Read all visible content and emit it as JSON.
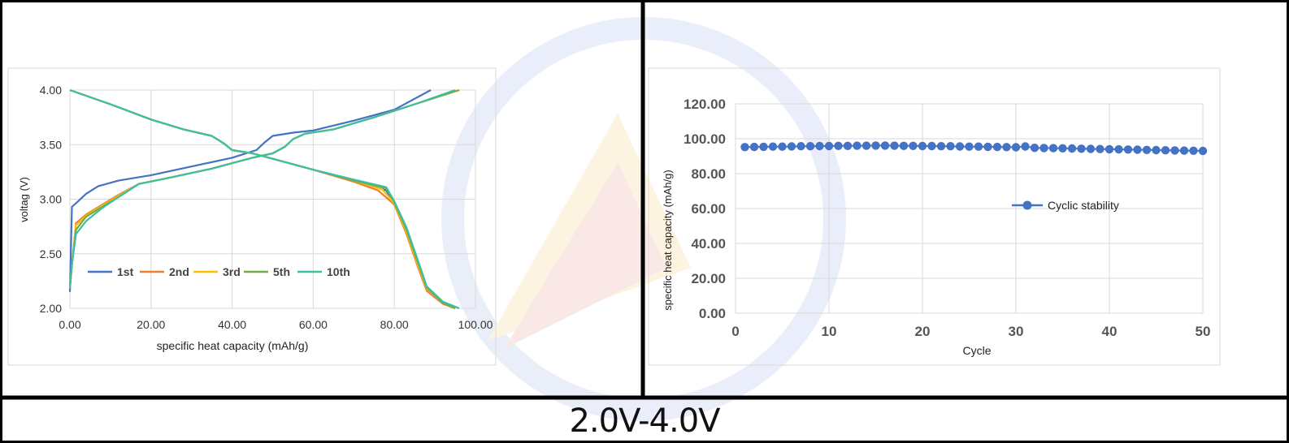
{
  "footer": {
    "range_label": "2.0V-4.0V"
  },
  "chart_data": [
    {
      "type": "line",
      "xlabel": "specific heat capacity (mAh/g)",
      "ylabel": "voltag (V)",
      "xlim": [
        0,
        100
      ],
      "ylim": [
        2.0,
        4.0
      ],
      "x_ticks": [
        "0.00",
        "20.00",
        "40.00",
        "60.00",
        "80.00",
        "100.00"
      ],
      "y_ticks": [
        "2.00",
        "2.50",
        "3.00",
        "3.50",
        "4.00"
      ],
      "grid": true,
      "legend_position": "bottom-left",
      "series": [
        {
          "name": "1st",
          "color": "#4472c4",
          "charge": [
            [
              0,
              2.15
            ],
            [
              0.5,
              2.93
            ],
            [
              2,
              2.98
            ],
            [
              4,
              3.05
            ],
            [
              7,
              3.12
            ],
            [
              12,
              3.17
            ],
            [
              20,
              3.22
            ],
            [
              30,
              3.3
            ],
            [
              40,
              3.38
            ],
            [
              46,
              3.45
            ],
            [
              48,
              3.52
            ],
            [
              50,
              3.58
            ],
            [
              55,
              3.61
            ],
            [
              60,
              3.63
            ],
            [
              70,
              3.72
            ],
            [
              80,
              3.82
            ],
            [
              89,
              4.0
            ]
          ],
          "discharge": [
            [
              0,
              4.0
            ],
            [
              10,
              3.87
            ],
            [
              20,
              3.73
            ],
            [
              28,
              3.64
            ],
            [
              35,
              3.58
            ],
            [
              38,
              3.51
            ],
            [
              40,
              3.45
            ],
            [
              45,
              3.42
            ],
            [
              50,
              3.37
            ],
            [
              60,
              3.27
            ],
            [
              70,
              3.17
            ],
            [
              78,
              3.08
            ],
            [
              80,
              2.95
            ],
            [
              83,
              2.7
            ],
            [
              86,
              2.38
            ],
            [
              88,
              2.18
            ],
            [
              92,
              2.05
            ],
            [
              95,
              2.0
            ]
          ]
        },
        {
          "name": "2nd",
          "color": "#ed7d31",
          "charge": [
            [
              0,
              2.18
            ],
            [
              0.5,
              2.4
            ],
            [
              1.5,
              2.78
            ],
            [
              4,
              2.86
            ],
            [
              8,
              2.95
            ],
            [
              12,
              3.04
            ],
            [
              17,
              3.14
            ],
            [
              25,
              3.2
            ],
            [
              35,
              3.28
            ],
            [
              45,
              3.38
            ],
            [
              50,
              3.42
            ],
            [
              53,
              3.48
            ],
            [
              55,
              3.55
            ],
            [
              58,
              3.6
            ],
            [
              65,
              3.64
            ],
            [
              75,
              3.75
            ],
            [
              85,
              3.87
            ],
            [
              96,
              4.0
            ]
          ],
          "discharge": [
            [
              0,
              4.0
            ],
            [
              10,
              3.87
            ],
            [
              20,
              3.73
            ],
            [
              28,
              3.64
            ],
            [
              35,
              3.58
            ],
            [
              38,
              3.51
            ],
            [
              40,
              3.45
            ],
            [
              45,
              3.42
            ],
            [
              50,
              3.37
            ],
            [
              60,
              3.27
            ],
            [
              70,
              3.16
            ],
            [
              76,
              3.08
            ],
            [
              80,
              2.95
            ],
            [
              83,
              2.68
            ],
            [
              86,
              2.36
            ],
            [
              88,
              2.16
            ],
            [
              92,
              2.04
            ],
            [
              95,
              2.0
            ]
          ]
        },
        {
          "name": "3rd",
          "color": "#ffc000",
          "charge": [
            [
              0,
              2.18
            ],
            [
              0.5,
              2.4
            ],
            [
              1.5,
              2.76
            ],
            [
              4,
              2.85
            ],
            [
              8,
              2.94
            ],
            [
              12,
              3.03
            ],
            [
              17,
              3.14
            ],
            [
              25,
              3.2
            ],
            [
              35,
              3.28
            ],
            [
              45,
              3.38
            ],
            [
              50,
              3.42
            ],
            [
              53,
              3.48
            ],
            [
              55,
              3.55
            ],
            [
              58,
              3.6
            ],
            [
              65,
              3.64
            ],
            [
              75,
              3.75
            ],
            [
              85,
              3.87
            ],
            [
              96,
              4.0
            ]
          ],
          "discharge": [
            [
              0,
              4.0
            ],
            [
              10,
              3.87
            ],
            [
              20,
              3.73
            ],
            [
              28,
              3.64
            ],
            [
              35,
              3.58
            ],
            [
              38,
              3.51
            ],
            [
              40,
              3.45
            ],
            [
              45,
              3.42
            ],
            [
              50,
              3.37
            ],
            [
              60,
              3.27
            ],
            [
              70,
              3.17
            ],
            [
              77,
              3.09
            ],
            [
              80,
              2.96
            ],
            [
              83,
              2.7
            ],
            [
              86,
              2.38
            ],
            [
              88,
              2.18
            ],
            [
              92,
              2.05
            ],
            [
              95,
              2.0
            ]
          ]
        },
        {
          "name": "5th",
          "color": "#70ad47",
          "charge": [
            [
              0,
              2.18
            ],
            [
              0.5,
              2.4
            ],
            [
              1.5,
              2.72
            ],
            [
              4,
              2.84
            ],
            [
              8,
              2.93
            ],
            [
              12,
              3.02
            ],
            [
              17,
              3.14
            ],
            [
              25,
              3.2
            ],
            [
              35,
              3.28
            ],
            [
              45,
              3.38
            ],
            [
              50,
              3.42
            ],
            [
              53,
              3.48
            ],
            [
              55,
              3.55
            ],
            [
              58,
              3.6
            ],
            [
              65,
              3.64
            ],
            [
              75,
              3.75
            ],
            [
              85,
              3.87
            ],
            [
              96,
              4.0
            ]
          ],
          "discharge": [
            [
              0,
              4.0
            ],
            [
              10,
              3.87
            ],
            [
              20,
              3.73
            ],
            [
              28,
              3.64
            ],
            [
              35,
              3.58
            ],
            [
              38,
              3.51
            ],
            [
              40,
              3.45
            ],
            [
              45,
              3.42
            ],
            [
              50,
              3.37
            ],
            [
              60,
              3.27
            ],
            [
              70,
              3.17
            ],
            [
              78,
              3.1
            ],
            [
              80,
              2.97
            ],
            [
              83,
              2.72
            ],
            [
              86,
              2.4
            ],
            [
              88,
              2.19
            ],
            [
              92,
              2.05
            ],
            [
              95,
              2.0
            ]
          ]
        },
        {
          "name": "10th",
          "color": "#3dbfa3",
          "charge": [
            [
              0,
              2.18
            ],
            [
              0.5,
              2.4
            ],
            [
              1.5,
              2.68
            ],
            [
              4,
              2.8
            ],
            [
              8,
              2.92
            ],
            [
              12,
              3.02
            ],
            [
              17,
              3.14
            ],
            [
              25,
              3.2
            ],
            [
              35,
              3.28
            ],
            [
              45,
              3.38
            ],
            [
              50,
              3.42
            ],
            [
              53,
              3.48
            ],
            [
              55,
              3.55
            ],
            [
              58,
              3.6
            ],
            [
              65,
              3.64
            ],
            [
              75,
              3.75
            ],
            [
              85,
              3.87
            ],
            [
              95,
              4.0
            ]
          ],
          "discharge": [
            [
              0,
              4.0
            ],
            [
              10,
              3.87
            ],
            [
              20,
              3.73
            ],
            [
              28,
              3.64
            ],
            [
              35,
              3.58
            ],
            [
              38,
              3.51
            ],
            [
              40,
              3.45
            ],
            [
              45,
              3.42
            ],
            [
              50,
              3.37
            ],
            [
              60,
              3.27
            ],
            [
              70,
              3.18
            ],
            [
              78,
              3.11
            ],
            [
              80,
              2.98
            ],
            [
              83,
              2.74
            ],
            [
              86,
              2.42
            ],
            [
              88,
              2.2
            ],
            [
              92,
              2.06
            ],
            [
              96,
              2.0
            ]
          ]
        }
      ]
    },
    {
      "type": "scatter",
      "xlabel": "Cycle",
      "ylabel": "specific heat capacity (mAh/g)",
      "xlim": [
        0,
        50
      ],
      "ylim": [
        0,
        120
      ],
      "x_ticks": [
        "0",
        "10",
        "20",
        "30",
        "40",
        "50"
      ],
      "y_ticks": [
        "0.00",
        "20.00",
        "40.00",
        "60.00",
        "80.00",
        "100.00",
        "120.00"
      ],
      "grid": true,
      "legend_position": "center-right",
      "series": [
        {
          "name": "Cyclic stability",
          "color": "#4472c4",
          "x": [
            1,
            2,
            3,
            4,
            5,
            6,
            7,
            8,
            9,
            10,
            11,
            12,
            13,
            14,
            15,
            16,
            17,
            18,
            19,
            20,
            21,
            22,
            23,
            24,
            25,
            26,
            27,
            28,
            29,
            30,
            31,
            32,
            33,
            34,
            35,
            36,
            37,
            38,
            39,
            40,
            41,
            42,
            43,
            44,
            45,
            46,
            47,
            48,
            49,
            50
          ],
          "y": [
            95.2,
            95.3,
            95.4,
            95.5,
            95.5,
            95.6,
            95.7,
            95.7,
            95.8,
            95.8,
            95.9,
            95.9,
            96.0,
            96.0,
            96.1,
            96.1,
            96.0,
            95.9,
            95.9,
            95.8,
            95.8,
            95.7,
            95.7,
            95.6,
            95.5,
            95.5,
            95.4,
            95.3,
            95.2,
            95.1,
            95.6,
            94.8,
            94.7,
            94.6,
            94.5,
            94.4,
            94.3,
            94.2,
            94.1,
            94.0,
            93.9,
            93.8,
            93.7,
            93.6,
            93.5,
            93.4,
            93.3,
            93.2,
            93.1,
            93.0
          ]
        }
      ]
    }
  ]
}
